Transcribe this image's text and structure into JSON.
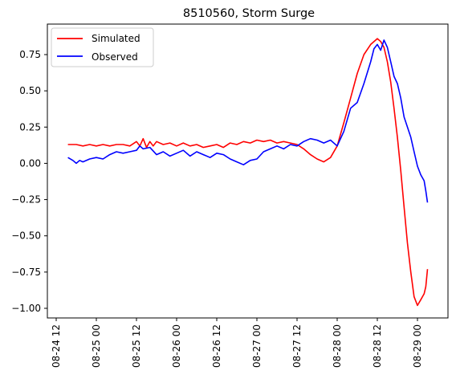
{
  "chart_data": {
    "type": "line",
    "title": "8510560, Storm Surge",
    "xlabel": "",
    "ylabel": "",
    "xlim": [
      "2012-08-24 12:00",
      "2012-08-29 04:00"
    ],
    "xlim_hours": [
      0,
      112
    ],
    "ylim": [
      -1.08,
      0.95
    ],
    "grid": false,
    "legend_position": "top-left",
    "x_ticks": [
      {
        "label": "08-24 12",
        "hour": 0
      },
      {
        "label": "08-25 00",
        "hour": 12
      },
      {
        "label": "08-25 12",
        "hour": 24
      },
      {
        "label": "08-26 00",
        "hour": 36
      },
      {
        "label": "08-26 12",
        "hour": 48
      },
      {
        "label": "08-27 00",
        "hour": 60
      },
      {
        "label": "08-27 12",
        "hour": 72
      },
      {
        "label": "08-28 00",
        "hour": 84
      },
      {
        "label": "08-28 12",
        "hour": 96
      },
      {
        "label": "08-29 00",
        "hour": 108
      }
    ],
    "y_ticks": [
      {
        "label": "0.75",
        "value": 0.75
      },
      {
        "label": "0.50",
        "value": 0.5
      },
      {
        "label": "0.25",
        "value": 0.25
      },
      {
        "label": "0.00",
        "value": 0.0
      },
      {
        "label": "−0.25",
        "value": -0.25
      },
      {
        "label": "−0.50",
        "value": -0.5
      },
      {
        "label": "−0.75",
        "value": -0.75
      },
      {
        "label": "−1.00",
        "value": -1.0
      }
    ],
    "series": [
      {
        "name": "Simulated",
        "color": "#ff0000",
        "points": [
          [
            3.5,
            0.13
          ],
          [
            6,
            0.13
          ],
          [
            8,
            0.12
          ],
          [
            10,
            0.13
          ],
          [
            12,
            0.12
          ],
          [
            14,
            0.13
          ],
          [
            16,
            0.12
          ],
          [
            18,
            0.13
          ],
          [
            20,
            0.13
          ],
          [
            22,
            0.12
          ],
          [
            24,
            0.15
          ],
          [
            25,
            0.12
          ],
          [
            26,
            0.17
          ],
          [
            27,
            0.11
          ],
          [
            28,
            0.15
          ],
          [
            29,
            0.12
          ],
          [
            30,
            0.15
          ],
          [
            32,
            0.13
          ],
          [
            34,
            0.14
          ],
          [
            36,
            0.12
          ],
          [
            38,
            0.14
          ],
          [
            40,
            0.12
          ],
          [
            42,
            0.13
          ],
          [
            44,
            0.11
          ],
          [
            46,
            0.12
          ],
          [
            48,
            0.13
          ],
          [
            50,
            0.11
          ],
          [
            52,
            0.14
          ],
          [
            54,
            0.13
          ],
          [
            56,
            0.15
          ],
          [
            58,
            0.14
          ],
          [
            60,
            0.16
          ],
          [
            62,
            0.15
          ],
          [
            64,
            0.16
          ],
          [
            66,
            0.14
          ],
          [
            68,
            0.15
          ],
          [
            70,
            0.14
          ],
          [
            72,
            0.13
          ],
          [
            74,
            0.1
          ],
          [
            76,
            0.06
          ],
          [
            78,
            0.03
          ],
          [
            80,
            0.01
          ],
          [
            82,
            0.04
          ],
          [
            84,
            0.12
          ],
          [
            86,
            0.28
          ],
          [
            88,
            0.45
          ],
          [
            90,
            0.62
          ],
          [
            92,
            0.75
          ],
          [
            94,
            0.82
          ],
          [
            96,
            0.86
          ],
          [
            97,
            0.84
          ],
          [
            98,
            0.8
          ],
          [
            99,
            0.7
          ],
          [
            100,
            0.56
          ],
          [
            101,
            0.38
          ],
          [
            102,
            0.18
          ],
          [
            103,
            -0.05
          ],
          [
            104,
            -0.3
          ],
          [
            105,
            -0.55
          ],
          [
            106,
            -0.75
          ],
          [
            107,
            -0.92
          ],
          [
            108,
            -0.98
          ],
          [
            109,
            -0.94
          ],
          [
            110,
            -0.9
          ],
          [
            110.5,
            -0.85
          ],
          [
            111,
            -0.73
          ]
        ]
      },
      {
        "name": "Observed",
        "color": "#0000ff",
        "points": [
          [
            3.5,
            0.04
          ],
          [
            5,
            0.02
          ],
          [
            6,
            0.0
          ],
          [
            7,
            0.02
          ],
          [
            8,
            0.01
          ],
          [
            10,
            0.03
          ],
          [
            12,
            0.04
          ],
          [
            14,
            0.03
          ],
          [
            16,
            0.06
          ],
          [
            18,
            0.08
          ],
          [
            20,
            0.07
          ],
          [
            22,
            0.08
          ],
          [
            24,
            0.09
          ],
          [
            25,
            0.12
          ],
          [
            26,
            0.1
          ],
          [
            28,
            0.11
          ],
          [
            30,
            0.06
          ],
          [
            32,
            0.08
          ],
          [
            34,
            0.05
          ],
          [
            36,
            0.07
          ],
          [
            38,
            0.09
          ],
          [
            40,
            0.05
          ],
          [
            42,
            0.08
          ],
          [
            44,
            0.06
          ],
          [
            46,
            0.04
          ],
          [
            48,
            0.07
          ],
          [
            50,
            0.06
          ],
          [
            52,
            0.03
          ],
          [
            54,
            0.01
          ],
          [
            56,
            -0.01
          ],
          [
            58,
            0.02
          ],
          [
            60,
            0.03
          ],
          [
            62,
            0.08
          ],
          [
            64,
            0.1
          ],
          [
            66,
            0.12
          ],
          [
            68,
            0.1
          ],
          [
            70,
            0.13
          ],
          [
            72,
            0.12
          ],
          [
            74,
            0.15
          ],
          [
            76,
            0.17
          ],
          [
            78,
            0.16
          ],
          [
            80,
            0.14
          ],
          [
            82,
            0.16
          ],
          [
            84,
            0.12
          ],
          [
            86,
            0.22
          ],
          [
            88,
            0.38
          ],
          [
            90,
            0.42
          ],
          [
            92,
            0.55
          ],
          [
            94,
            0.7
          ],
          [
            95,
            0.79
          ],
          [
            96,
            0.82
          ],
          [
            97,
            0.78
          ],
          [
            98,
            0.85
          ],
          [
            99,
            0.8
          ],
          [
            100,
            0.7
          ],
          [
            101,
            0.6
          ],
          [
            102,
            0.55
          ],
          [
            103,
            0.45
          ],
          [
            104,
            0.32
          ],
          [
            105,
            0.25
          ],
          [
            106,
            0.18
          ],
          [
            107,
            0.08
          ],
          [
            108,
            -0.02
          ],
          [
            109,
            -0.08
          ],
          [
            110,
            -0.12
          ],
          [
            110.5,
            -0.19
          ],
          [
            111,
            -0.27
          ]
        ]
      }
    ]
  }
}
